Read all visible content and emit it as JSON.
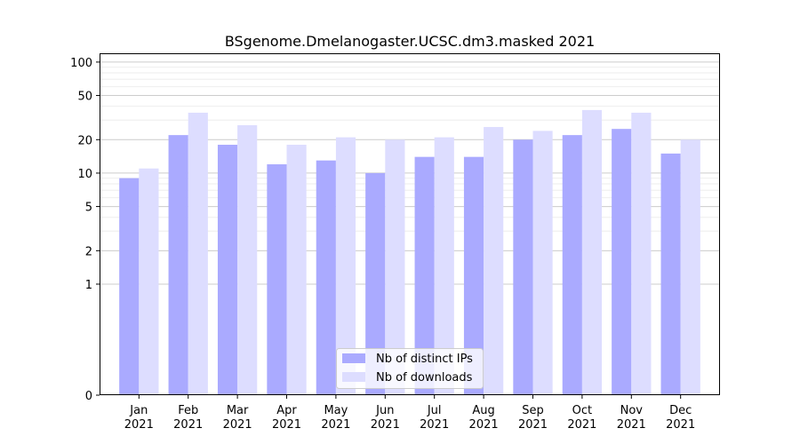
{
  "chart_data": {
    "type": "bar",
    "title": "BSgenome.Dmelanogaster.UCSC.dm3.masked 2021",
    "xlabel": "",
    "ylabel": "",
    "yscale": "symlog",
    "categories": [
      [
        "Jan",
        "2021"
      ],
      [
        "Feb",
        "2021"
      ],
      [
        "Mar",
        "2021"
      ],
      [
        "Apr",
        "2021"
      ],
      [
        "May",
        "2021"
      ],
      [
        "Jun",
        "2021"
      ],
      [
        "Jul",
        "2021"
      ],
      [
        "Aug",
        "2021"
      ],
      [
        "Sep",
        "2021"
      ],
      [
        "Oct",
        "2021"
      ],
      [
        "Nov",
        "2021"
      ],
      [
        "Dec",
        "2021"
      ]
    ],
    "series": [
      {
        "name": "Nb of distinct IPs",
        "color": "#aaaaff",
        "values": [
          9,
          22,
          18,
          12,
          13,
          10,
          14,
          14,
          20,
          22,
          25,
          15
        ]
      },
      {
        "name": "Nb of downloads",
        "color": "#ddddff",
        "values": [
          11,
          35,
          27,
          18,
          21,
          20,
          21,
          26,
          24,
          37,
          35,
          20
        ]
      }
    ],
    "yticks": [
      0,
      1,
      2,
      5,
      10,
      20,
      50,
      100
    ],
    "ytick_labels": [
      "0",
      "1",
      "2",
      "5",
      "10",
      "20",
      "50",
      "100"
    ],
    "ylim": [
      0,
      120
    ],
    "grid": true,
    "legend": "bottom-center"
  }
}
